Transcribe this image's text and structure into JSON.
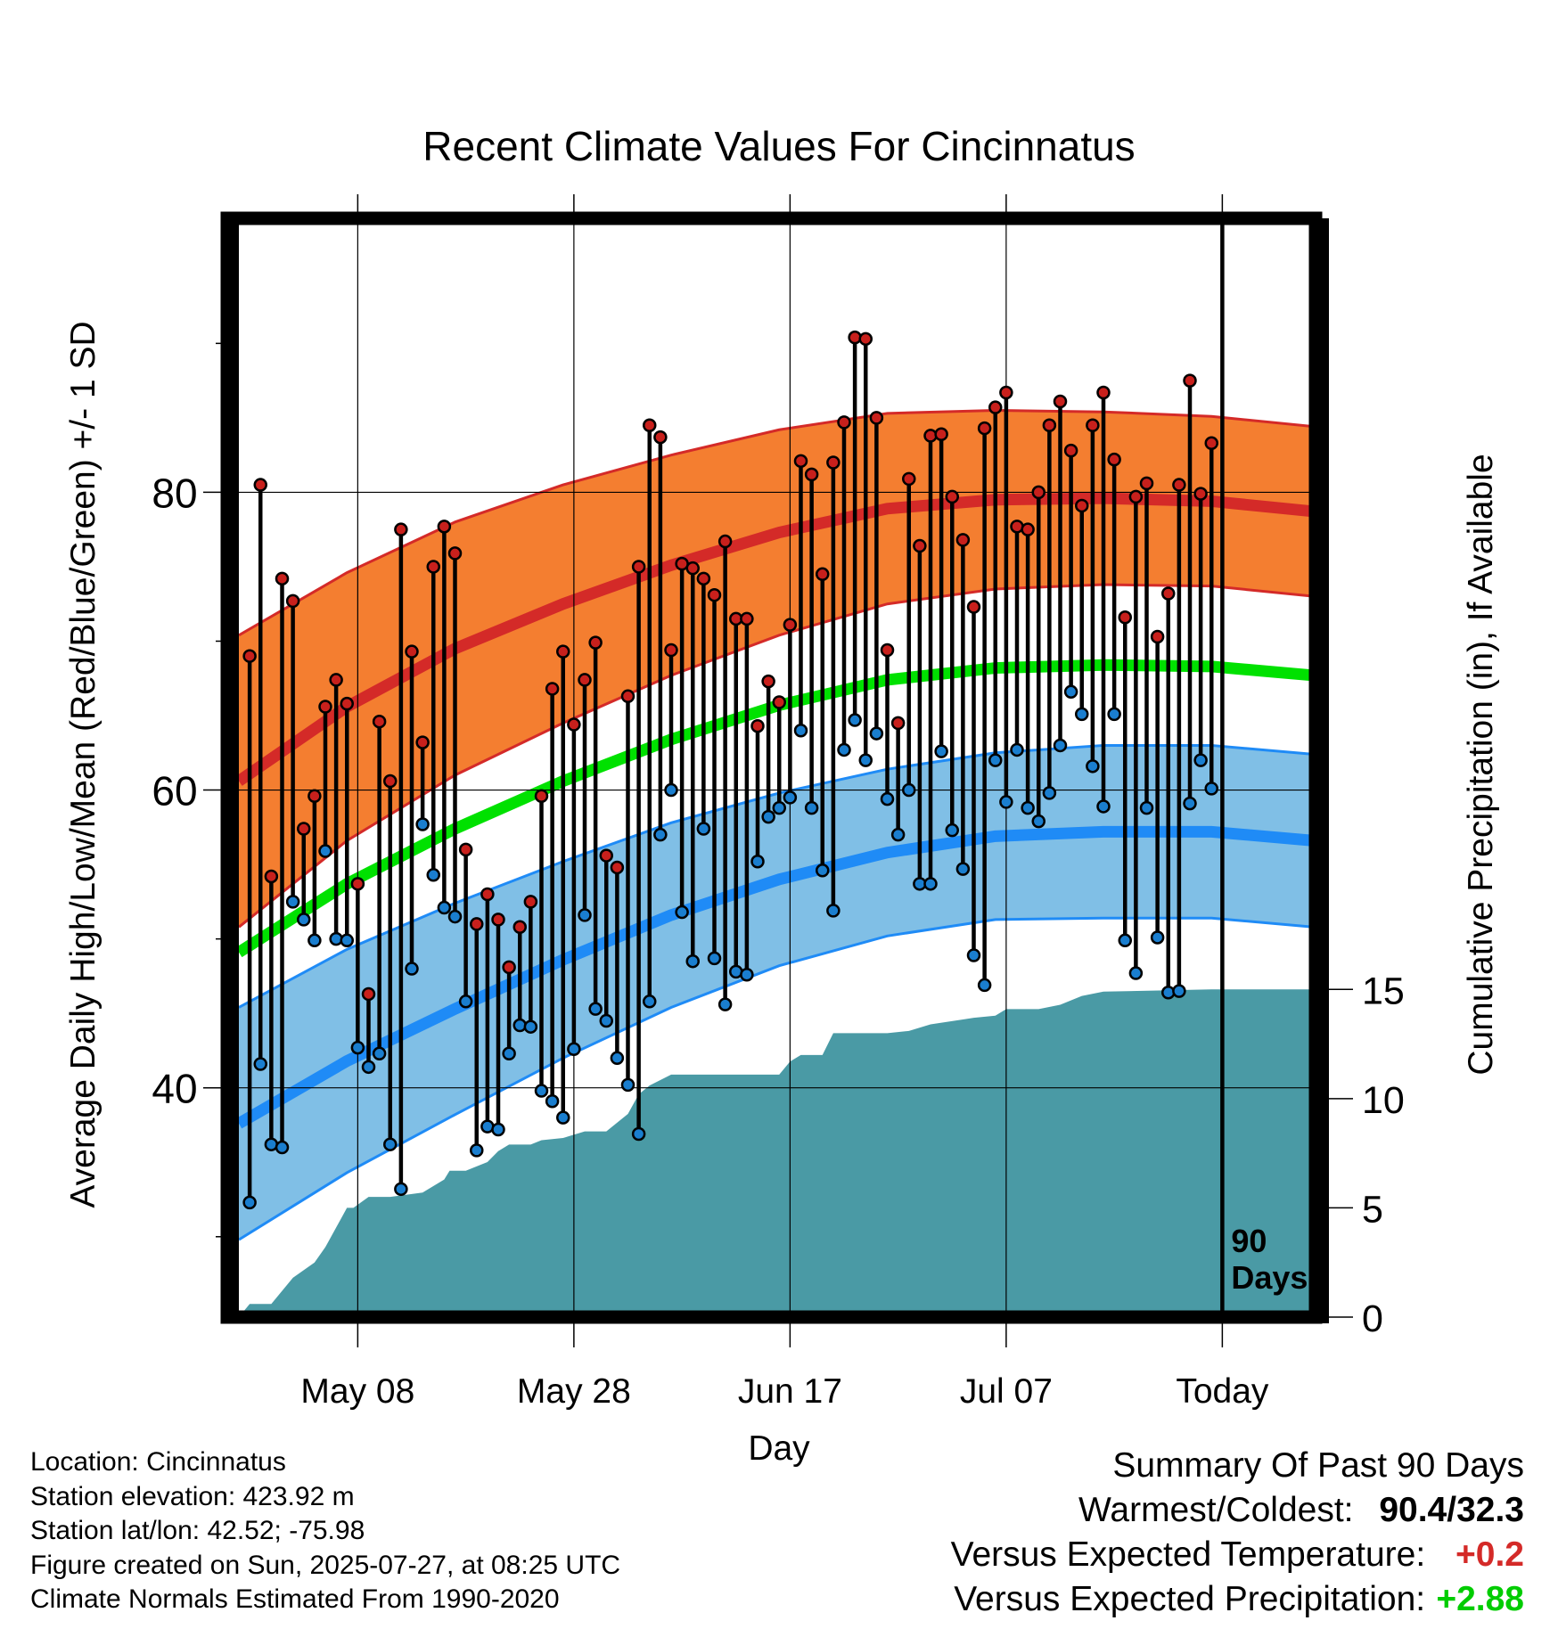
{
  "chart_data": {
    "type": "line",
    "title": "Recent Climate Values For Cincinnatus",
    "xlabel": "Day",
    "ylabel": "Average Daily High/Low/Mean (Red/Blue/Green) +/- 1 SD",
    "y2label": "Cumulative Precipitation (in), If Available",
    "xtick_labels": [
      "May 08",
      "May 28",
      "Jun 17",
      "Jul 07",
      "Today"
    ],
    "xtick_days": [
      11,
      31,
      51,
      71,
      91
    ],
    "yticks": [
      40,
      60,
      80
    ],
    "y2ticks": [
      0,
      5,
      10,
      15
    ],
    "xlim": [
      0,
      101
    ],
    "ylim": [
      24.6,
      98.4
    ],
    "y2lim": [
      0,
      50.3
    ],
    "grid": true,
    "today_marker_label": [
      "90",
      "Days"
    ],
    "normals": {
      "x": [
        0,
        10,
        20,
        30,
        40,
        50,
        60,
        70,
        80,
        90,
        101
      ],
      "high_mean": [
        60.6,
        65.6,
        69.5,
        72.5,
        75.1,
        77.3,
        78.9,
        79.5,
        79.6,
        79.4,
        78.6
      ],
      "high_sd": [
        9.8,
        9.0,
        8.5,
        8.0,
        7.4,
        6.9,
        6.4,
        6.0,
        5.8,
        5.7,
        5.7
      ],
      "low_mean": [
        37.6,
        41.8,
        45.3,
        48.6,
        51.6,
        54.0,
        55.8,
        56.9,
        57.2,
        57.2,
        56.5
      ],
      "low_sd": [
        7.8,
        7.5,
        7.1,
        6.6,
        6.2,
        5.8,
        5.6,
        5.6,
        5.8,
        5.8,
        5.8
      ],
      "mean": [
        49.1,
        53.7,
        57.4,
        60.6,
        63.4,
        65.7,
        67.4,
        68.2,
        68.4,
        68.3,
        67.6
      ]
    },
    "daily_highs": [
      69.0,
      80.5,
      54.2,
      74.2,
      72.7,
      57.4,
      59.6,
      65.6,
      67.4,
      65.8,
      53.7,
      46.3,
      64.6,
      60.6,
      77.5,
      69.3,
      63.2,
      75.0,
      77.7,
      75.9,
      56.0,
      51.0,
      53.0,
      51.3,
      48.1,
      50.8,
      52.5,
      59.6,
      66.8,
      69.3,
      64.4,
      67.4,
      69.9,
      55.6,
      54.8,
      66.3,
      75.0,
      84.5,
      83.7,
      69.4,
      75.2,
      74.9,
      74.2,
      73.1,
      76.7,
      71.5,
      71.5,
      64.3,
      67.3,
      65.9,
      71.1,
      82.1,
      81.2,
      74.5,
      82.0,
      84.7,
      90.4,
      90.3,
      85.0,
      69.4,
      64.5,
      80.9,
      76.4,
      83.8,
      83.9,
      79.7,
      76.8,
      72.3,
      84.3,
      85.7,
      86.7,
      77.7,
      77.5,
      80.0,
      84.5,
      86.1,
      82.8,
      79.1,
      84.5,
      86.7,
      82.2,
      71.6,
      79.7,
      80.6,
      70.3,
      73.2,
      80.5,
      87.5,
      79.9,
      83.3
    ],
    "daily_lows": [
      32.3,
      41.6,
      36.2,
      36.0,
      52.5,
      51.3,
      49.9,
      55.9,
      50.0,
      49.9,
      42.7,
      41.4,
      42.3,
      36.2,
      33.2,
      48.0,
      57.7,
      54.3,
      52.1,
      51.5,
      45.8,
      35.8,
      37.4,
      37.2,
      42.3,
      44.2,
      44.1,
      39.8,
      39.1,
      38.0,
      42.6,
      51.6,
      45.3,
      44.5,
      42.0,
      40.2,
      36.9,
      45.8,
      57.0,
      60.0,
      51.8,
      48.5,
      57.4,
      48.7,
      45.6,
      47.8,
      47.6,
      55.2,
      58.2,
      58.8,
      59.5,
      64.0,
      58.8,
      54.6,
      51.9,
      62.7,
      64.7,
      62.0,
      63.8,
      59.4,
      57.0,
      60.0,
      53.7,
      53.7,
      62.6,
      57.3,
      54.7,
      48.9,
      46.9,
      62.0,
      59.2,
      62.7,
      58.8,
      57.9,
      59.8,
      63.0,
      66.6,
      65.1,
      61.6,
      58.9,
      65.1,
      49.9,
      47.7,
      58.8,
      50.1,
      46.4,
      46.5,
      59.1,
      62.0,
      60.1
    ],
    "cumulative_precip": {
      "x": [
        0,
        1,
        3,
        5,
        7,
        8,
        10,
        10.6,
        12,
        14,
        17,
        19,
        19.5,
        21,
        23,
        24,
        25,
        27,
        28,
        30,
        32,
        34,
        36,
        37,
        38,
        40,
        42,
        44,
        45,
        47,
        49,
        50,
        51,
        52,
        54,
        55,
        56,
        58,
        60,
        62,
        64,
        68,
        70,
        71,
        74,
        76,
        78,
        80,
        90,
        101
      ],
      "y": [
        0,
        0.6,
        0.6,
        1.8,
        2.5,
        3.2,
        5.0,
        5.0,
        5.5,
        5.5,
        5.7,
        6.3,
        6.7,
        6.7,
        7.1,
        7.6,
        7.9,
        7.9,
        8.1,
        8.2,
        8.5,
        8.5,
        9.3,
        10.2,
        10.6,
        11.1,
        11.1,
        11.1,
        11.1,
        11.1,
        11.1,
        11.1,
        11.7,
        12.0,
        12.0,
        13.0,
        13.0,
        13.0,
        13.0,
        13.1,
        13.4,
        13.7,
        13.8,
        14.1,
        14.1,
        14.3,
        14.7,
        14.9,
        15.0,
        15.0
      ]
    },
    "colors": {
      "high_band": "#f47e30",
      "high_line": "#d42a28",
      "low_band": "#80bfe6",
      "low_line": "#1f8bf6",
      "mean_line": "#00e100",
      "precip_fill": "#4a9aa5",
      "high_dot": "#c8201c",
      "low_dot": "#1a7ecf"
    }
  },
  "footer": {
    "location": "Location: Cincinnatus",
    "elevation": "Station elevation: 423.92 m",
    "latlon": "Station lat/lon: 42.52; -75.98",
    "created": "Figure created on Sun, 2025-07-27, at 08:25 UTC",
    "normals": "Climate Normals Estimated From 1990-2020"
  },
  "summary": {
    "heading": "Summary Of Past 90 Days",
    "warm_cold_label": "Warmest/Coldest:",
    "warm_cold_value": "90.4/32.3",
    "temp_label": "Versus Expected Temperature:",
    "temp_value": "+0.2",
    "temp_color": "#d42a28",
    "precip_label": "Versus Expected Precipitation:",
    "precip_value": "+2.88",
    "precip_color": "#00cc00"
  }
}
